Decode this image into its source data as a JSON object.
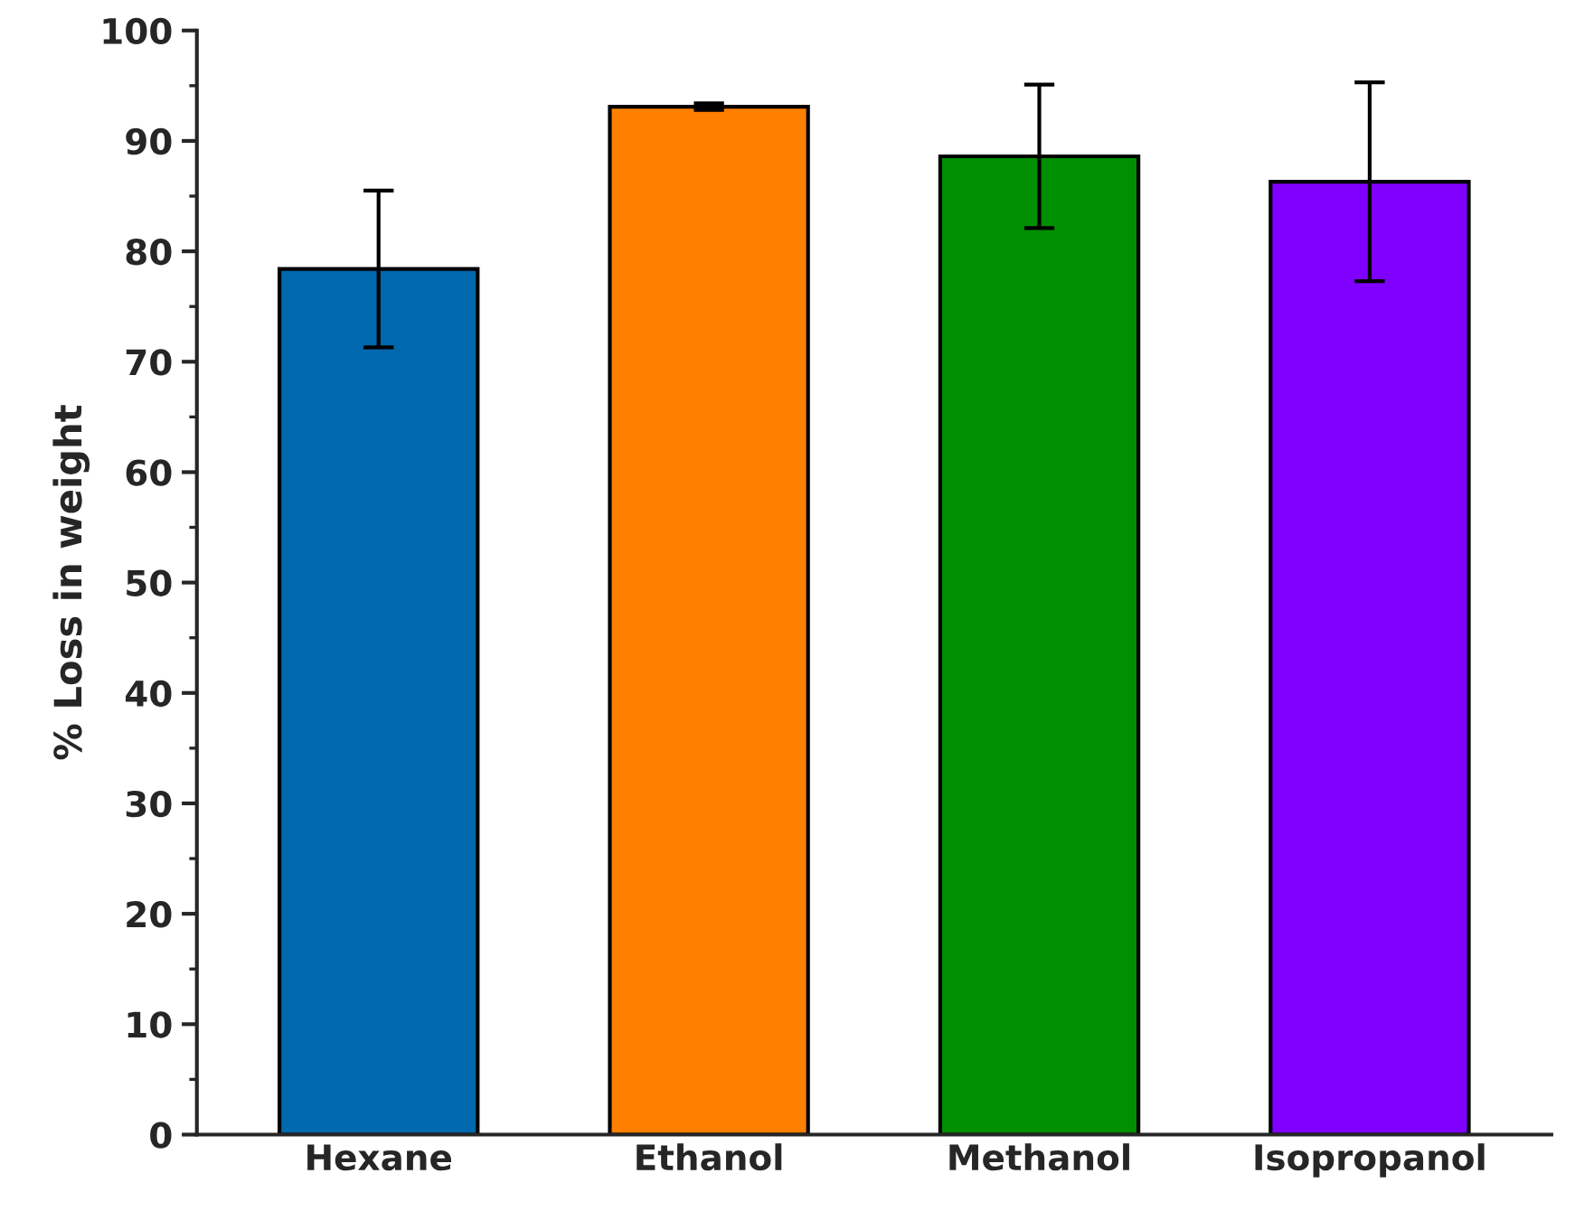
{
  "chart_data": {
    "type": "bar",
    "ylabel": "% Loss in weight",
    "categories": [
      "Hexane",
      "Ethanol",
      "Methanol",
      "Isopropanol"
    ],
    "values": [
      78.4,
      93.1,
      88.6,
      86.3
    ],
    "errors": [
      7.1,
      0.3,
      6.5,
      9.0
    ],
    "colors": [
      "#0068ad",
      "#ff8000",
      "#008f00",
      "#8000ff"
    ],
    "ylim": [
      0,
      100
    ],
    "yticks": [
      0,
      10,
      20,
      30,
      40,
      50,
      60,
      70,
      80,
      90,
      100
    ],
    "grid": false
  }
}
